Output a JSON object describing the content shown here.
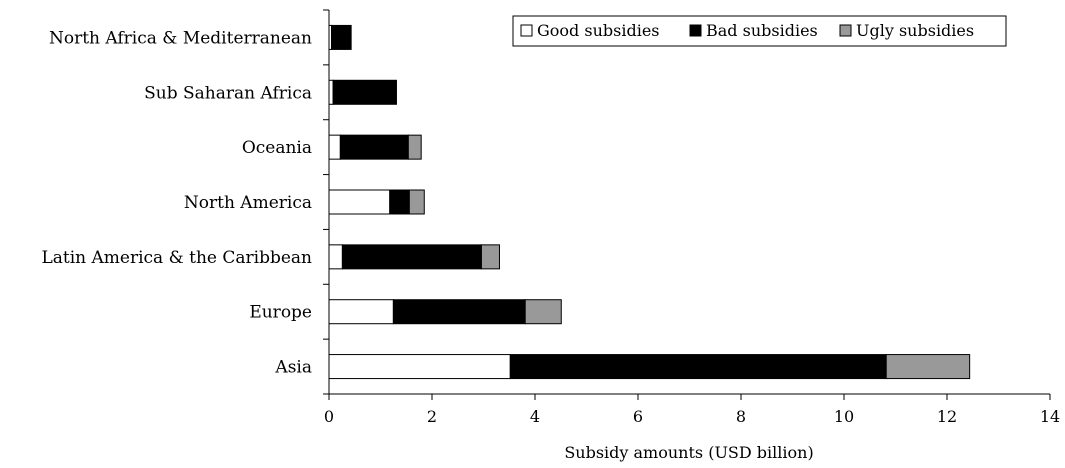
{
  "chart_data": {
    "type": "bar",
    "orientation": "horizontal",
    "stacked": true,
    "categories": [
      "North Africa &  Mediterranean",
      "Sub Saharan Africa",
      "Oceania",
      "North America",
      "Latin America & the Caribbean",
      "Europe",
      "Asia"
    ],
    "series": [
      {
        "name": "Good subsidies",
        "color": "#ffffff",
        "values": [
          0.05,
          0.08,
          0.22,
          1.18,
          0.26,
          1.25,
          3.52
        ]
      },
      {
        "name": "Bad subsidies",
        "color": "#000000",
        "values": [
          0.38,
          1.23,
          1.32,
          0.38,
          2.7,
          2.56,
          7.3
        ]
      },
      {
        "name": "Ugly subsidies",
        "color": "#999999",
        "values": [
          0.0,
          0.0,
          0.25,
          0.29,
          0.35,
          0.7,
          1.62
        ]
      }
    ],
    "xlabel": "Subsidy amounts (USD billion)",
    "ylabel": "",
    "xlim": [
      0,
      14
    ],
    "xticks": [
      0,
      2,
      4,
      6,
      8,
      10,
      12,
      14
    ],
    "xtick_labels": [
      "0",
      "2",
      "4",
      "6",
      "8",
      "10",
      "12",
      "14"
    ],
    "grid": false,
    "legend_position": "top-right"
  }
}
